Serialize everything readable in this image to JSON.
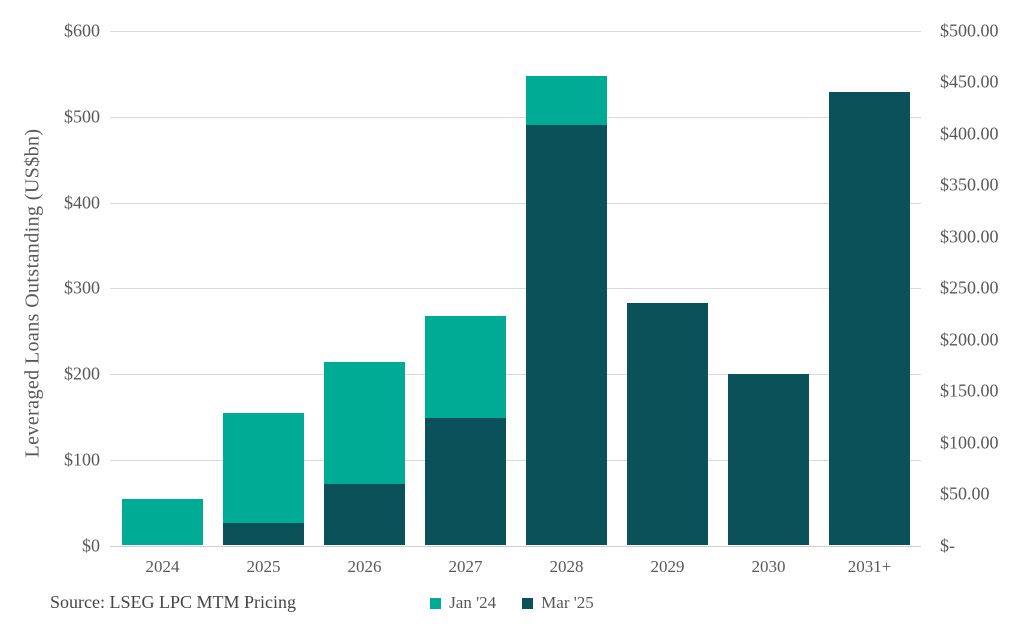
{
  "chart_data": {
    "type": "bar",
    "subtype": "overlapping-dual-axis",
    "title": "",
    "categories": [
      "2024",
      "2025",
      "2026",
      "2027",
      "2028",
      "2029",
      "2030",
      "2031+"
    ],
    "series": [
      {
        "name": "Jan '24",
        "axis": "left",
        "color": "#00ab96",
        "values": [
          54,
          154,
          214,
          268,
          547,
          null,
          null,
          null
        ]
      },
      {
        "name": "Mar '25",
        "axis": "right",
        "color": "#0a515a",
        "values": [
          null,
          22,
          60,
          124,
          409,
          236,
          167,
          441
        ]
      }
    ],
    "y_axis_left": {
      "title": "Leveraged Loans Outstanding (US$bn)",
      "min": 0,
      "max": 600,
      "tick_labels_top_to_bottom": [
        "$600",
        "$500",
        "$400",
        "$300",
        "$200",
        "$100",
        "$0"
      ]
    },
    "y_axis_right": {
      "title": "",
      "min": 0,
      "max": 500,
      "tick_labels_top_to_bottom": [
        "$500.00",
        "$450.00",
        "$400.00",
        "$350.00",
        "$300.00",
        "$250.00",
        "$200.00",
        "$150.00",
        "$100.00",
        "$50.00",
        "$-"
      ]
    },
    "grid": true,
    "legend_position": "bottom"
  },
  "colors": {
    "jan24_teal": "#00ab96",
    "mar25_dark_teal": "#0a515a",
    "gridline": "#d9d9d9",
    "axis_text": "#595959",
    "source_text": "#454545",
    "background": "#ffffff"
  },
  "source": {
    "label": "Source: LSEG LPC MTM Pricing"
  }
}
